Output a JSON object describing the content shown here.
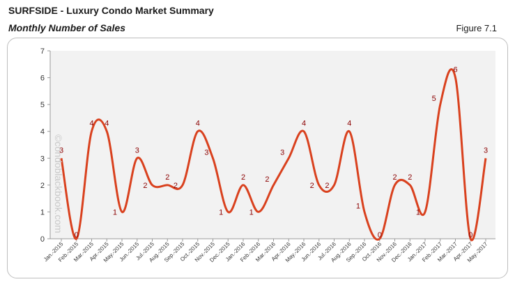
{
  "header": {
    "title": "SURFSIDE - Luxury Condo Market Summary",
    "subtitle": "Monthly Number of Sales",
    "figure": "Figure 7.1"
  },
  "watermark": "©condoblackbook.com",
  "colors": {
    "line": "#d9411e",
    "plot_bg": "#f2f2f2",
    "data_label": "#8b0000"
  },
  "chart_data": {
    "type": "line",
    "title": "Monthly Number of Sales",
    "xlabel": "",
    "ylabel": "",
    "ylim": [
      0,
      7
    ],
    "yticks": [
      0,
      1,
      2,
      3,
      4,
      5,
      6,
      7
    ],
    "grid": false,
    "smoothed": true,
    "categories": [
      "Jan.-2015",
      "Feb.-2015",
      "Mar.-2015",
      "Apr.-2015",
      "May.-2015",
      "Jun.-2015",
      "Jul.-2015",
      "Aug.-2015",
      "Sep.-2015",
      "Oct.-2015",
      "Nov.-2015",
      "Dec.-2015",
      "Jan.-2016",
      "Feb.-2016",
      "Mar.-2016",
      "Apr.-2016",
      "May.-2016",
      "Jun.-2016",
      "Jul.-2016",
      "Aug.-2016",
      "Sep.-2016",
      "Oct.-2016",
      "Nov.-2016",
      "Dec.-2016",
      "Jan.-2017",
      "Feb.-2017",
      "Mar.-2017",
      "Apr.-2017",
      "May.-2017"
    ],
    "x_tick_labels": [
      "Jan.-2015",
      "Feb.-2015",
      "Mar.-2015",
      "Apr.-2015",
      "May.-2015",
      "Jun.-2015",
      "Jul.-2015",
      "Aug.-2015",
      "Sep.-2015",
      "Oct.-2015",
      "Nov.-2015",
      "Dec.-2015",
      "Jan.-2016",
      "Feb.-2016",
      "Mar.-2016",
      "Apr.-2016",
      "May.-2016",
      "Jun.-2016",
      "Jul.-2016",
      "Aug.-2016",
      "Sep.-2016",
      "Oct.-2016",
      "Nov.-2016",
      "Dec.-2016",
      "Jan.-2017",
      "Feb.-2017",
      "Mar.-2017",
      "Apr.-2017",
      "May.-2017"
    ],
    "series": [
      {
        "values": [
          3,
          0,
          4,
          4,
          1,
          3,
          2,
          2,
          2,
          4,
          3,
          1,
          2,
          1,
          2,
          3,
          4,
          2,
          2,
          4,
          1,
          0,
          2,
          2,
          1,
          5,
          6,
          0,
          3
        ]
      }
    ]
  }
}
